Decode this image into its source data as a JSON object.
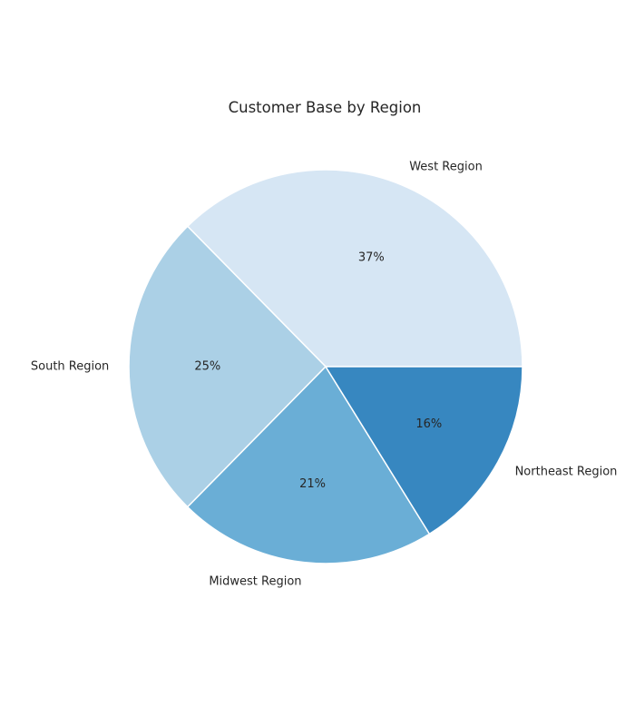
{
  "chart_data": {
    "type": "pie",
    "title": "Customer Base by Region",
    "categories": [
      "West Region",
      "South Region",
      "Midwest Region",
      "Northeast Region"
    ],
    "values": [
      37,
      25,
      21,
      16
    ],
    "value_labels": [
      "37%",
      "25%",
      "21%",
      "16%"
    ],
    "colors": [
      "#d6e6f4",
      "#abd0e6",
      "#6aaed6",
      "#3787c0"
    ],
    "start_angle_deg": 0,
    "direction": "counterclockwise",
    "legend": "none"
  }
}
